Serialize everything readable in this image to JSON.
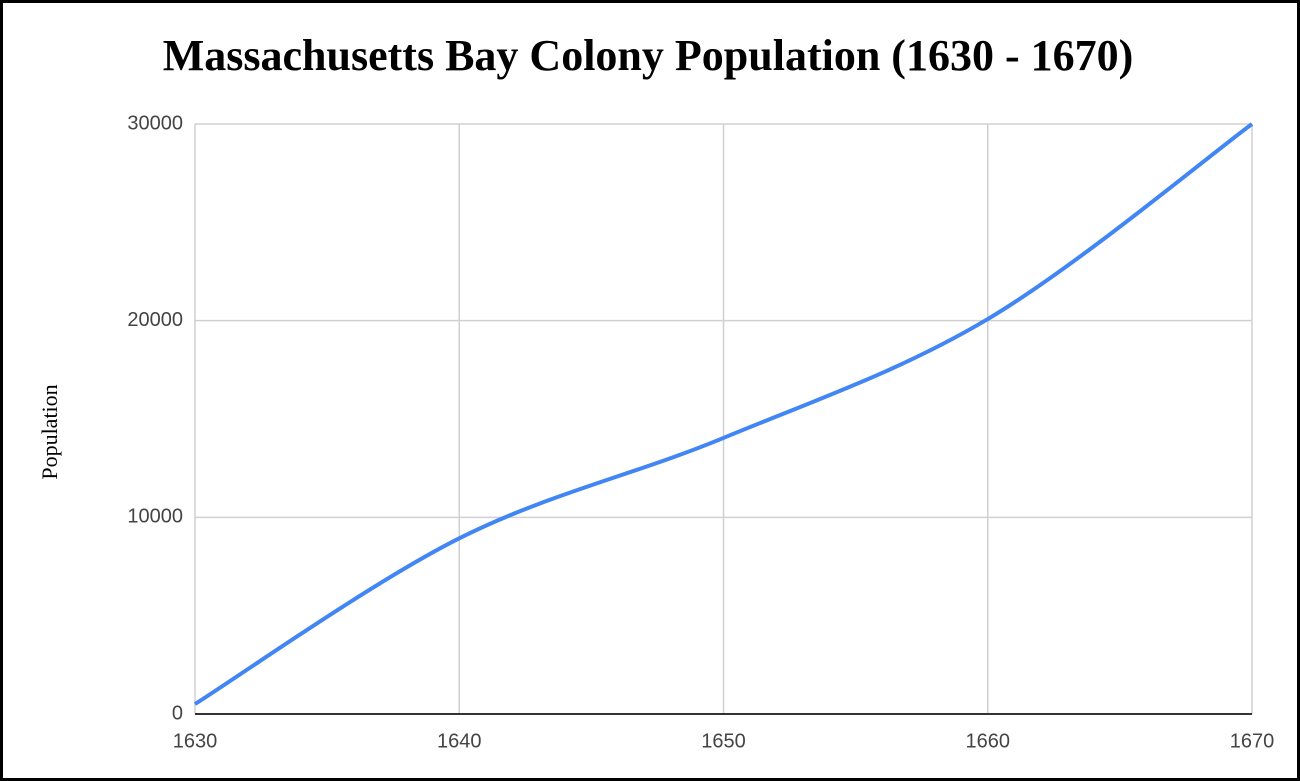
{
  "chart_data": {
    "type": "line",
    "title": "Massachusetts Bay Colony Population (1630 - 1670)",
    "ylabel": "Population",
    "x": [
      1630,
      1640,
      1650,
      1660,
      1670
    ],
    "values": [
      506,
      8932,
      14037,
      20082,
      30000
    ],
    "color": "#4285f4",
    "xlim": [
      1630,
      1670
    ],
    "xticks": [
      1630,
      1640,
      1650,
      1660,
      1670
    ],
    "ylim": [
      0,
      30000
    ],
    "yticks": [
      0,
      10000,
      20000,
      30000
    ],
    "grid": true
  }
}
